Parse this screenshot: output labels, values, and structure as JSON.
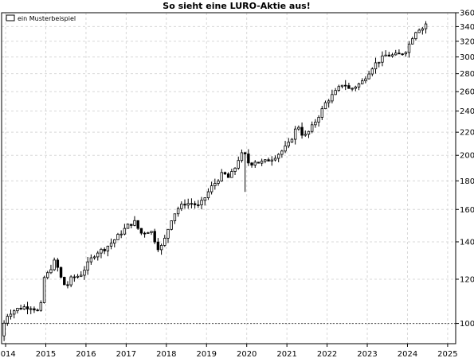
{
  "chart_data": {
    "type": "candlestick",
    "title": "So sieht eine LURO-Aktie aus!",
    "legend": {
      "label": "ein Musterbeispiel",
      "placement": "top-left"
    },
    "y_scale": "log",
    "ylim": [
      92,
      360
    ],
    "xlim": [
      2013.9,
      2025.2
    ],
    "y_ticks": [
      100,
      120,
      140,
      160,
      180,
      200,
      220,
      240,
      260,
      280,
      300,
      320,
      340,
      360
    ],
    "x_ticks": [
      "2014",
      "2015",
      "2016",
      "2017",
      "2018",
      "2019",
      "2020",
      "2021",
      "2022",
      "2023",
      "2024",
      "2025"
    ],
    "reference_line": 100,
    "grid": true,
    "anchors": [
      [
        2013.92,
        95
      ],
      [
        2014.0,
        100
      ],
      [
        2014.1,
        104
      ],
      [
        2014.3,
        106
      ],
      [
        2014.5,
        107
      ],
      [
        2014.7,
        107
      ],
      [
        2014.85,
        105
      ],
      [
        2014.92,
        108
      ],
      [
        2014.97,
        120
      ],
      [
        2015.1,
        123
      ],
      [
        2015.2,
        127
      ],
      [
        2015.28,
        130
      ],
      [
        2015.36,
        124
      ],
      [
        2015.45,
        119
      ],
      [
        2015.55,
        116
      ],
      [
        2015.65,
        120
      ],
      [
        2015.75,
        121
      ],
      [
        2015.9,
        122
      ],
      [
        2016.0,
        125
      ],
      [
        2016.15,
        130
      ],
      [
        2016.3,
        134
      ],
      [
        2016.5,
        136
      ],
      [
        2016.7,
        140
      ],
      [
        2016.9,
        145
      ],
      [
        2017.1,
        150
      ],
      [
        2017.25,
        152
      ],
      [
        2017.4,
        145
      ],
      [
        2017.55,
        146
      ],
      [
        2017.65,
        147
      ],
      [
        2017.75,
        141
      ],
      [
        2017.85,
        136
      ],
      [
        2017.95,
        138
      ],
      [
        2018.05,
        145
      ],
      [
        2018.15,
        153
      ],
      [
        2018.3,
        160
      ],
      [
        2018.5,
        164
      ],
      [
        2018.7,
        164
      ],
      [
        2018.85,
        162
      ],
      [
        2019.0,
        168
      ],
      [
        2019.15,
        175
      ],
      [
        2019.3,
        180
      ],
      [
        2019.45,
        186
      ],
      [
        2019.6,
        182
      ],
      [
        2019.75,
        190
      ],
      [
        2019.85,
        198
      ],
      [
        2019.95,
        202
      ],
      [
        2020.05,
        198
      ],
      [
        2020.12,
        190
      ],
      [
        2020.2,
        196
      ],
      [
        2020.35,
        194
      ],
      [
        2020.5,
        195
      ],
      [
        2020.7,
        198
      ],
      [
        2020.9,
        203
      ],
      [
        2021.1,
        210
      ],
      [
        2021.25,
        222
      ],
      [
        2021.35,
        226
      ],
      [
        2021.45,
        215
      ],
      [
        2021.6,
        221
      ],
      [
        2021.75,
        230
      ],
      [
        2021.9,
        240
      ],
      [
        2022.0,
        248
      ],
      [
        2022.15,
        255
      ],
      [
        2022.3,
        262
      ],
      [
        2022.45,
        270
      ],
      [
        2022.6,
        262
      ],
      [
        2022.75,
        266
      ],
      [
        2022.9,
        270
      ],
      [
        2023.05,
        280
      ],
      [
        2023.2,
        290
      ],
      [
        2023.35,
        296
      ],
      [
        2023.5,
        302
      ],
      [
        2023.7,
        302
      ],
      [
        2023.85,
        303
      ],
      [
        2024.0,
        308
      ],
      [
        2024.1,
        318
      ],
      [
        2024.2,
        330
      ],
      [
        2024.3,
        338
      ],
      [
        2024.4,
        336
      ],
      [
        2024.48,
        344
      ]
    ],
    "candle_step": 0.0833,
    "spikes": [
      {
        "x": 2020.0,
        "low": 172
      },
      {
        "x": 2014.0,
        "low": 93
      }
    ],
    "up_color": "#ffffff",
    "down_color": "#000000",
    "wick_color": "#000000"
  }
}
